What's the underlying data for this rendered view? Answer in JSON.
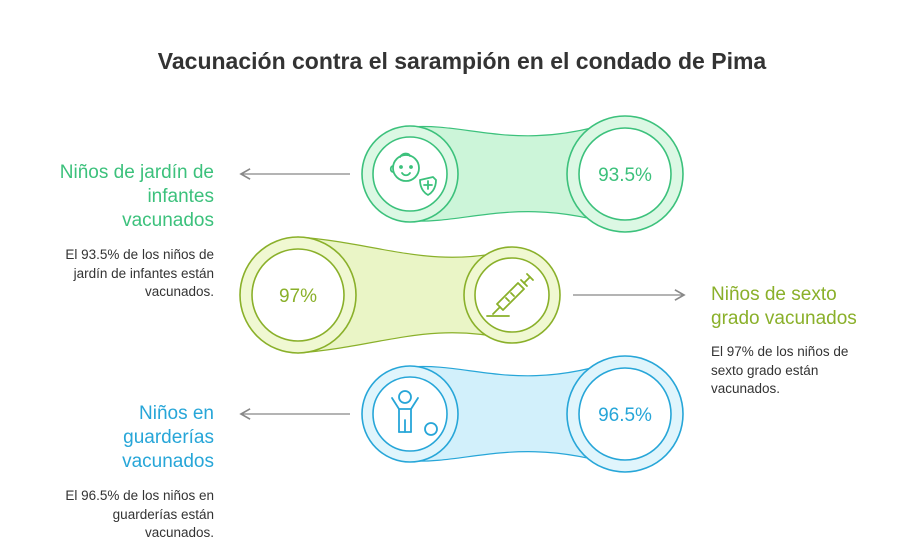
{
  "title": "Vacunación contra el sarampión en el condado de Pima",
  "items": [
    {
      "heading_lines": [
        "Niños de jardín de",
        "infantes",
        "vacunados"
      ],
      "description_lines": [
        "El 93.5% de los niños de",
        "jardín de infantes están",
        "vacunados."
      ],
      "value": "93.5%",
      "icon": "baby-with-shield-icon",
      "color": "#3cc17c",
      "fill": "#ccf5d9"
    },
    {
      "heading_lines": [
        "Niños de sexto",
        "grado vacunados"
      ],
      "description_lines": [
        "El 97% de los niños de",
        "sexto grado están",
        "vacunados."
      ],
      "value": "97%",
      "icon": "syringe-icon",
      "color": "#8ab02a",
      "fill": "#eaf5c6"
    },
    {
      "heading_lines": [
        "Niños en",
        "guarderías",
        "vacunados"
      ],
      "description_lines": [
        "El 96.5% de los niños en",
        "guarderías están",
        "vacunados."
      ],
      "value": "96.5%",
      "icon": "child-with-ball-icon",
      "color": "#27a6d8",
      "fill": "#d2f0fb"
    }
  ]
}
